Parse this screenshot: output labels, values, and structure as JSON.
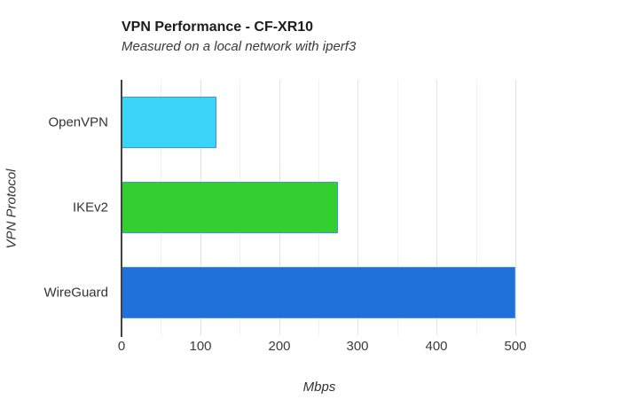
{
  "chart_data": {
    "type": "bar",
    "orientation": "horizontal",
    "title": "VPN Performance - CF-XR10",
    "subtitle": "Measured on a local network with iperf3",
    "xlabel": "Mbps",
    "ylabel": "VPN Protocol",
    "categories": [
      "OpenVPN",
      "IKEv2",
      "WireGuard"
    ],
    "values": [
      120,
      275,
      500
    ],
    "bar_colors": [
      "#3AD5F6",
      "#33CF30",
      "#1F70D8"
    ],
    "bar_border_color": "#3E93F0",
    "xlim": [
      0,
      555
    ],
    "x_major_ticks": [
      0,
      100,
      200,
      300,
      400,
      500
    ],
    "x_minor_step": 50,
    "grid": true,
    "legend_position": "none",
    "colors": {
      "axis_line": "#424242",
      "major_gridline": "#E3E3E3",
      "minor_gridline": "#F1F1F1",
      "title_text": "#1C1C1C",
      "subtitle_text": "#3A3A3A",
      "label_text": "#333333"
    }
  }
}
